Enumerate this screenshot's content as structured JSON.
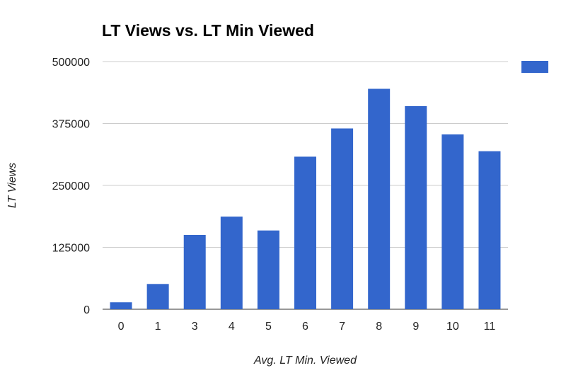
{
  "chart_data": {
    "type": "bar",
    "title": "LT Views vs. LT Min Viewed",
    "xlabel": "Avg. LT Min. Viewed",
    "ylabel": "LT Views",
    "categories": [
      "0",
      "1",
      "3",
      "4",
      "5",
      "6",
      "7",
      "8",
      "9",
      "10",
      "11"
    ],
    "series": [
      {
        "values": [
          14000,
          51000,
          150000,
          187000,
          159000,
          308000,
          365000,
          445000,
          410000,
          353000,
          319000
        ],
        "color": "#3366cc"
      }
    ],
    "ylim": [
      0,
      500000
    ],
    "yticks": [
      "0",
      "125000",
      "250000",
      "375000",
      "500000"
    ],
    "grid": true,
    "legend": "top-right"
  }
}
